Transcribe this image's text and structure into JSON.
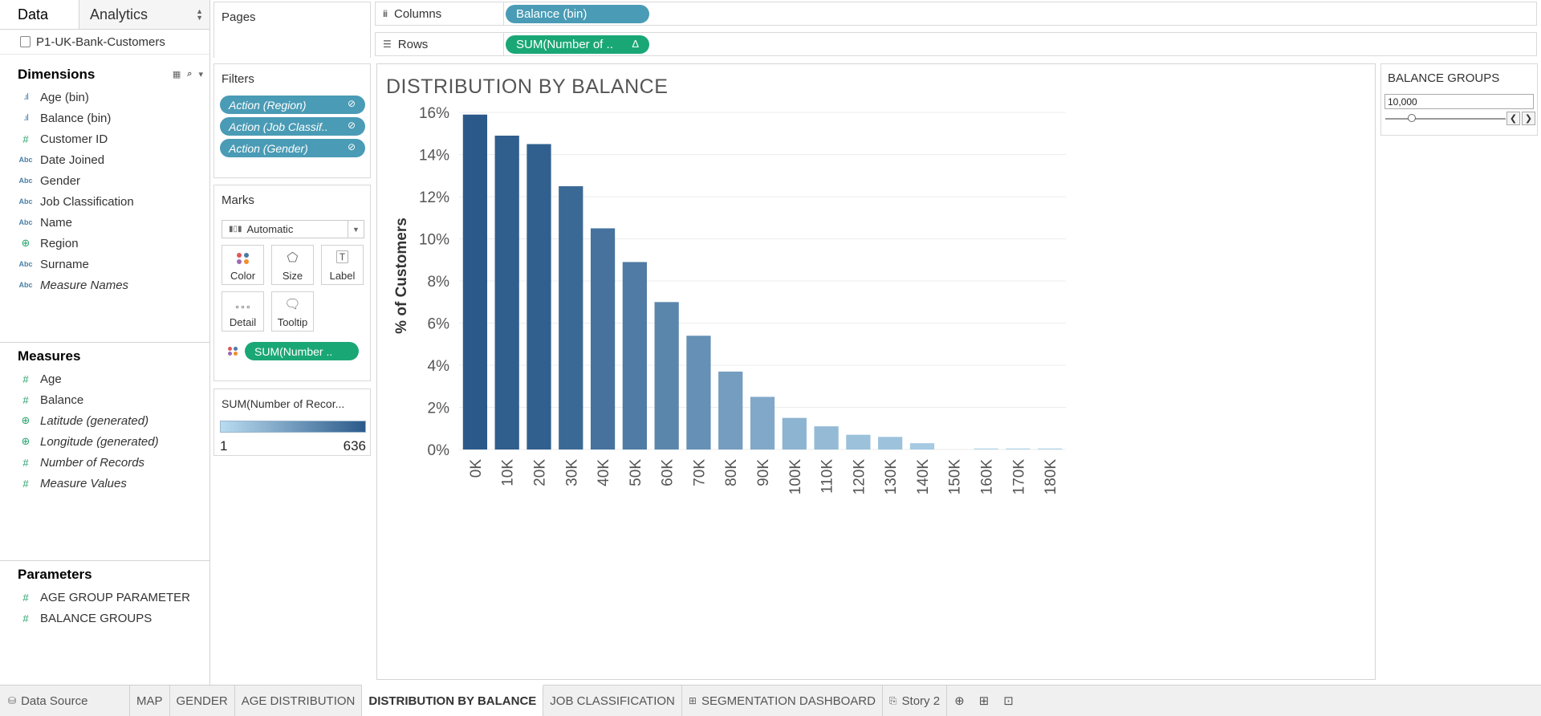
{
  "datapane": {
    "tab_data": "Data",
    "tab_analytics": "Analytics",
    "datasource": "P1-UK-Bank-Customers",
    "dimensions_title": "Dimensions",
    "dimensions": [
      {
        "label": "Age (bin)",
        "icon": "bins-icon"
      },
      {
        "label": "Balance (bin)",
        "icon": "bins-icon"
      },
      {
        "label": "Customer ID",
        "icon": "number-icon"
      },
      {
        "label": "Date Joined",
        "icon": "string-icon"
      },
      {
        "label": "Gender",
        "icon": "string-icon"
      },
      {
        "label": "Job Classification",
        "icon": "string-icon"
      },
      {
        "label": "Name",
        "icon": "string-icon"
      },
      {
        "label": "Region",
        "icon": "globe-icon"
      },
      {
        "label": "Surname",
        "icon": "string-icon"
      },
      {
        "label": "Measure Names",
        "icon": "string-icon"
      }
    ],
    "measures_title": "Measures",
    "measures": [
      {
        "label": "Age"
      },
      {
        "label": "Balance"
      },
      {
        "label": "Latitude (generated)"
      },
      {
        "label": "Longitude (generated)"
      },
      {
        "label": "Number of Records"
      },
      {
        "label": "Measure Values"
      }
    ],
    "parameters_title": "Parameters",
    "parameters": [
      {
        "label": "AGE GROUP PARAMETER"
      },
      {
        "label": "BALANCE GROUPS"
      }
    ]
  },
  "shelves": {
    "pages_title": "Pages",
    "filters_title": "Filters",
    "filters": [
      "Action (Region)",
      "Action (Job Classif..",
      "Action (Gender)"
    ],
    "marks_title": "Marks",
    "marks_type": "Automatic",
    "mark_buttons": {
      "color": "Color",
      "size": "Size",
      "label": "Label",
      "detail": "Detail",
      "tooltip": "Tooltip"
    },
    "marks_pill": "SUM(Number ..",
    "legend_title": "SUM(Number of Recor...",
    "legend_min": "1",
    "legend_max": "636",
    "columns_label": "Columns",
    "columns_pill": "Balance (bin)",
    "rows_label": "Rows",
    "rows_pill": "SUM(Number of ..",
    "rows_pill_delta": "Δ"
  },
  "view": {
    "title": "DISTRIBUTION BY BALANCE"
  },
  "parameter_control": {
    "title": "BALANCE GROUPS",
    "value": "10,000",
    "slider_fraction": 0.22
  },
  "tabs": {
    "data_source": "Data Source",
    "sheets": [
      "MAP",
      "GENDER",
      "AGE DISTRIBUTION",
      "DISTRIBUTION BY BALANCE",
      "JOB CLASSIFICATION"
    ],
    "dashboard": "SEGMENTATION DASHBOARD",
    "story": "Story 2",
    "active": "DISTRIBUTION BY BALANCE"
  },
  "colors": {
    "blue_pill": "#4a9bb5",
    "green_pill": "#1aa776",
    "bar_dark": "#2b5a8a",
    "bar_light": "#b9dcf0"
  },
  "chart_data": {
    "type": "bar",
    "title": "DISTRIBUTION BY BALANCE",
    "xlabel": "",
    "ylabel": "% of Customers",
    "categories": [
      "0K",
      "10K",
      "20K",
      "30K",
      "40K",
      "50K",
      "60K",
      "70K",
      "80K",
      "90K",
      "100K",
      "110K",
      "120K",
      "130K",
      "140K",
      "150K",
      "160K",
      "170K",
      "180K"
    ],
    "values": [
      15.9,
      14.9,
      14.5,
      12.5,
      10.5,
      8.9,
      7.0,
      5.4,
      3.7,
      2.5,
      1.5,
      1.1,
      0.7,
      0.6,
      0.3,
      0.0,
      0.05,
      0.05,
      0.05
    ],
    "yticks": [
      "0%",
      "2%",
      "4%",
      "6%",
      "8%",
      "10%",
      "12%",
      "14%",
      "16%"
    ],
    "ylim": [
      0,
      16.5
    ],
    "grid": true,
    "color_encoding": "SUM(Number of Records)"
  }
}
